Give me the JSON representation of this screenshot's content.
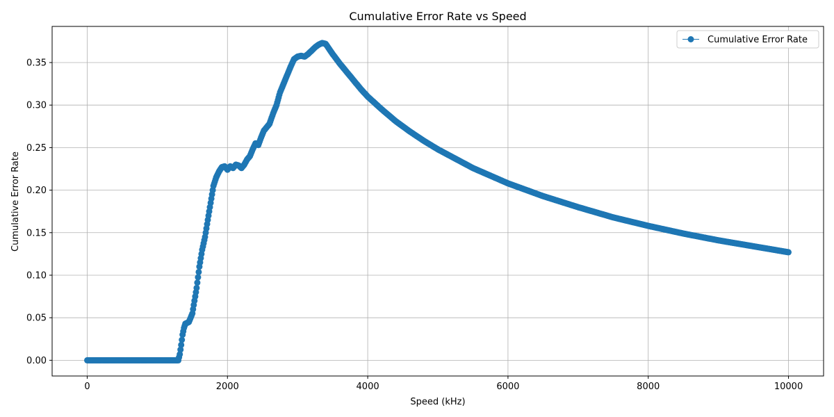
{
  "chart_data": {
    "type": "line",
    "title": "Cumulative Error Rate vs Speed",
    "xlabel": "Speed (kHz)",
    "ylabel": "Cumulative Error Rate",
    "xlim": [
      -500,
      10500
    ],
    "ylim": [
      -0.0185,
      0.3925
    ],
    "x_ticks": [
      0,
      2000,
      4000,
      6000,
      8000,
      10000
    ],
    "x_tick_labels": [
      "0",
      "2000",
      "4000",
      "6000",
      "8000",
      "10000"
    ],
    "y_ticks": [
      0.0,
      0.05,
      0.1,
      0.15,
      0.2,
      0.25,
      0.3,
      0.35
    ],
    "y_tick_labels": [
      "0.00",
      "0.05",
      "0.10",
      "0.15",
      "0.20",
      "0.25",
      "0.30",
      "0.35"
    ],
    "grid": true,
    "legend_position": "top-right",
    "series": [
      {
        "name": "Cumulative Error Rate",
        "color": "#1f77b4",
        "marker": "circle",
        "x": [
          0,
          100,
          200,
          300,
          400,
          500,
          600,
          700,
          800,
          900,
          1000,
          1100,
          1200,
          1300,
          1320,
          1340,
          1360,
          1380,
          1400,
          1450,
          1500,
          1530,
          1560,
          1600,
          1640,
          1680,
          1720,
          1760,
          1800,
          1840,
          1880,
          1920,
          1960,
          2000,
          2040,
          2080,
          2120,
          2160,
          2200,
          2240,
          2280,
          2320,
          2360,
          2400,
          2440,
          2480,
          2520,
          2560,
          2600,
          2650,
          2700,
          2750,
          2800,
          2850,
          2900,
          2950,
          3000,
          3050,
          3100,
          3150,
          3200,
          3250,
          3300,
          3350,
          3400,
          3500,
          3600,
          3700,
          3800,
          3900,
          4000,
          4200,
          4400,
          4600,
          4800,
          5000,
          5500,
          6000,
          6500,
          7000,
          7500,
          8000,
          8500,
          9000,
          9500,
          10000
        ],
        "y": [
          0,
          0,
          0,
          0,
          0,
          0,
          0,
          0,
          0,
          0,
          0,
          0,
          0,
          0,
          0.007,
          0.018,
          0.03,
          0.038,
          0.043,
          0.045,
          0.055,
          0.07,
          0.085,
          0.11,
          0.13,
          0.145,
          0.165,
          0.185,
          0.205,
          0.215,
          0.222,
          0.227,
          0.228,
          0.224,
          0.228,
          0.226,
          0.23,
          0.229,
          0.226,
          0.23,
          0.236,
          0.24,
          0.248,
          0.255,
          0.253,
          0.262,
          0.27,
          0.274,
          0.278,
          0.29,
          0.3,
          0.315,
          0.325,
          0.335,
          0.345,
          0.354,
          0.357,
          0.358,
          0.357,
          0.36,
          0.364,
          0.368,
          0.371,
          0.373,
          0.372,
          0.36,
          0.349,
          0.339,
          0.329,
          0.319,
          0.31,
          0.295,
          0.281,
          0.269,
          0.258,
          0.248,
          0.226,
          0.208,
          0.193,
          0.18,
          0.168,
          0.158,
          0.149,
          0.141,
          0.134,
          0.127
        ]
      }
    ]
  }
}
